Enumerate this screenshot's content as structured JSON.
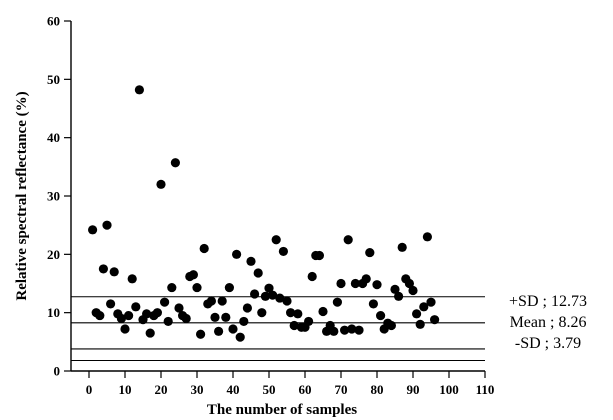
{
  "chart_data": {
    "type": "scatter",
    "title": "",
    "xlabel": "The number of samples",
    "ylabel": "Relative spectral reflectance (%)",
    "xlim": [
      -5,
      110
    ],
    "ylim": [
      0,
      60
    ],
    "xticks": [
      0,
      10,
      20,
      30,
      40,
      50,
      60,
      70,
      80,
      90,
      100,
      110
    ],
    "yticks": [
      0,
      10,
      20,
      30,
      40,
      50,
      60
    ],
    "grid": false,
    "reference_lines": [
      {
        "label": "+SD ; 12.73",
        "value": 12.73
      },
      {
        "label": "Mean ;  8.26",
        "value": 8.26
      },
      {
        "label": "-SD ;  3.79",
        "value": 3.79
      }
    ],
    "extra_lines": [
      {
        "value": 1.8
      }
    ],
    "points": [
      [
        1,
        24.2
      ],
      [
        2,
        10
      ],
      [
        3,
        9.5
      ],
      [
        4,
        17.5
      ],
      [
        5,
        25
      ],
      [
        6,
        11.5
      ],
      [
        7,
        17
      ],
      [
        8,
        9.8
      ],
      [
        9,
        9
      ],
      [
        10,
        7.2
      ],
      [
        11,
        9.5
      ],
      [
        12,
        15.8
      ],
      [
        13,
        11
      ],
      [
        14,
        48.2
      ],
      [
        15,
        8.8
      ],
      [
        16,
        9.8
      ],
      [
        17,
        6.5
      ],
      [
        18,
        9.5
      ],
      [
        19,
        10
      ],
      [
        20,
        32
      ],
      [
        21,
        11.8
      ],
      [
        22,
        8.5
      ],
      [
        23,
        14.3
      ],
      [
        24,
        35.7
      ],
      [
        25,
        10.8
      ],
      [
        26,
        9.5
      ],
      [
        27,
        9
      ],
      [
        28,
        16.2
      ],
      [
        29,
        16.5
      ],
      [
        30,
        14.3
      ],
      [
        31,
        6.3
      ],
      [
        32,
        21
      ],
      [
        33,
        11.5
      ],
      [
        34,
        12
      ],
      [
        35,
        9.2
      ],
      [
        36,
        6.8
      ],
      [
        37,
        12
      ],
      [
        38,
        9.2
      ],
      [
        39,
        14.3
      ],
      [
        40,
        7.2
      ],
      [
        41,
        20
      ],
      [
        42,
        5.8
      ],
      [
        43,
        8.5
      ],
      [
        44,
        10.8
      ],
      [
        45,
        18.8
      ],
      [
        46,
        13.2
      ],
      [
        47,
        16.8
      ],
      [
        48,
        10
      ],
      [
        49,
        12.8
      ],
      [
        50,
        14.2
      ],
      [
        51,
        13
      ],
      [
        52,
        22.5
      ],
      [
        53,
        12.5
      ],
      [
        54,
        20.5
      ],
      [
        55,
        12
      ],
      [
        56,
        10
      ],
      [
        57,
        7.8
      ],
      [
        58,
        9.8
      ],
      [
        59,
        7.5
      ],
      [
        60,
        7.5
      ],
      [
        61,
        8.5
      ],
      [
        62,
        16.2
      ],
      [
        63,
        19.8
      ],
      [
        64,
        19.8
      ],
      [
        65,
        10.2
      ],
      [
        66,
        6.8
      ],
      [
        67,
        7.8
      ],
      [
        68,
        6.8
      ],
      [
        69,
        11.8
      ],
      [
        70,
        15
      ],
      [
        71,
        7
      ],
      [
        72,
        22.5
      ],
      [
        73,
        7.2
      ],
      [
        74,
        15
      ],
      [
        75,
        7
      ],
      [
        76,
        15
      ],
      [
        77,
        15.8
      ],
      [
        78,
        20.3
      ],
      [
        79,
        11.5
      ],
      [
        80,
        14.8
      ],
      [
        81,
        9.5
      ],
      [
        82,
        7.2
      ],
      [
        83,
        8.2
      ],
      [
        84,
        7.8
      ],
      [
        85,
        14
      ],
      [
        86,
        12.8
      ],
      [
        87,
        21.2
      ],
      [
        88,
        15.8
      ],
      [
        89,
        15
      ],
      [
        90,
        13.8
      ],
      [
        91,
        9.8
      ],
      [
        92,
        8
      ],
      [
        93,
        11
      ],
      [
        94,
        23
      ],
      [
        95,
        11.8
      ],
      [
        96,
        8.8
      ]
    ]
  }
}
